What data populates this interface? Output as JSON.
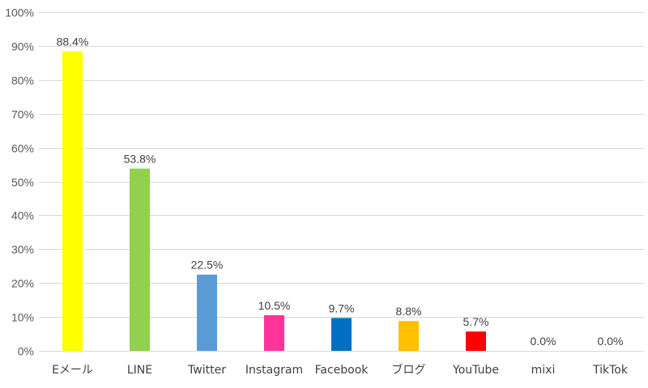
{
  "chart_data": {
    "type": "bar",
    "title": "",
    "xlabel": "",
    "ylabel": "",
    "ylim": [
      0,
      100
    ],
    "y_unit": "%",
    "y_ticks": [
      0,
      10,
      20,
      30,
      40,
      50,
      60,
      70,
      80,
      90,
      100
    ],
    "y_tick_labels": [
      "0%",
      "10%",
      "20%",
      "30%",
      "40%",
      "50%",
      "60%",
      "70%",
      "80%",
      "90%",
      "100%"
    ],
    "grid": true,
    "legend": "none",
    "categories": [
      "Eメール",
      "LINE",
      "Twitter",
      "Instagram",
      "Facebook",
      "ブログ",
      "YouTube",
      "mixi",
      "TikTok"
    ],
    "values": [
      88.4,
      53.8,
      22.5,
      10.5,
      9.7,
      8.8,
      5.7,
      0.0,
      0.0
    ],
    "data_labels": [
      "88.4%",
      "53.8%",
      "22.5%",
      "10.5%",
      "9.7%",
      "8.8%",
      "5.7%",
      "0.0%",
      "0.0%"
    ],
    "colors": [
      "#ffff00",
      "#92d050",
      "#5b9bd5",
      "#ff3399",
      "#0070c0",
      "#ffc000",
      "#ff0000",
      "#a5a5a5",
      "#a5a5a5"
    ]
  }
}
